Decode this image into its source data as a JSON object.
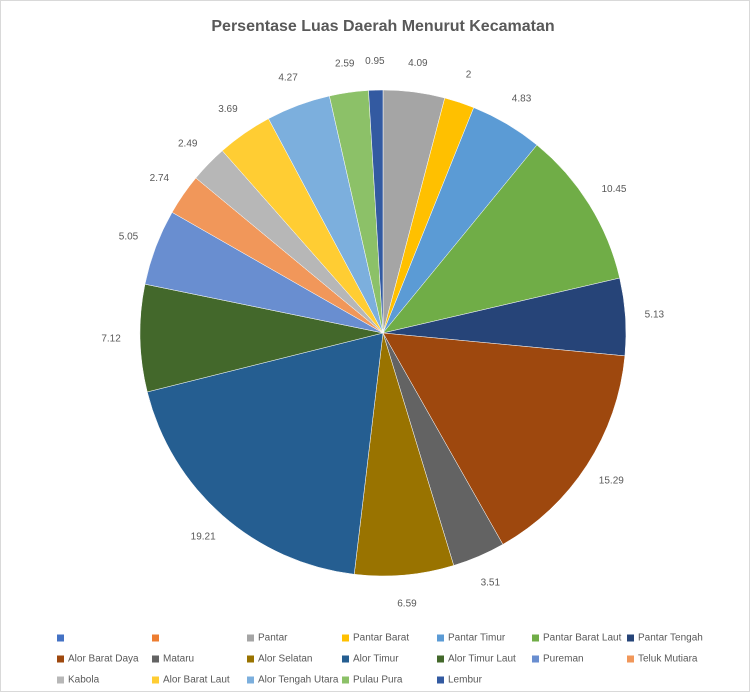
{
  "chart_data": {
    "type": "pie",
    "title": "Persentase Luas Daerah Menurut Kecamatan",
    "categories": [
      null,
      null,
      "Pantar",
      "Pantar Barat",
      "Pantar Timur",
      "Pantar Barat Laut",
      "Pantar Tengah",
      "Alor Barat Daya",
      "Mataru",
      "Alor Selatan",
      "Alor Timur",
      "Alor Timur Laut",
      "Pureman",
      "Teluk Mutiara",
      "Kabola",
      "Alor Barat Laut",
      "Alor Tengah Utara",
      "Pulau Pura",
      "Lembur"
    ],
    "values": [
      null,
      null,
      4.09,
      2,
      4.83,
      10.45,
      5.13,
      15.29,
      3.51,
      6.59,
      19.21,
      7.12,
      5.05,
      2.74,
      2.49,
      3.69,
      4.27,
      2.59,
      0.95
    ],
    "colors": [
      "#4472c4",
      "#ed7d31",
      "#a5a5a5",
      "#ffc000",
      "#5b9bd5",
      "#70ad47",
      "#264478",
      "#9e480e",
      "#636363",
      "#997300",
      "#255e91",
      "#43682b",
      "#698ed0",
      "#f1975a",
      "#b7b7b7",
      "#ffcd33",
      "#7cafdd",
      "#8cc168",
      "#335aa1"
    ],
    "legend": "bottom"
  }
}
